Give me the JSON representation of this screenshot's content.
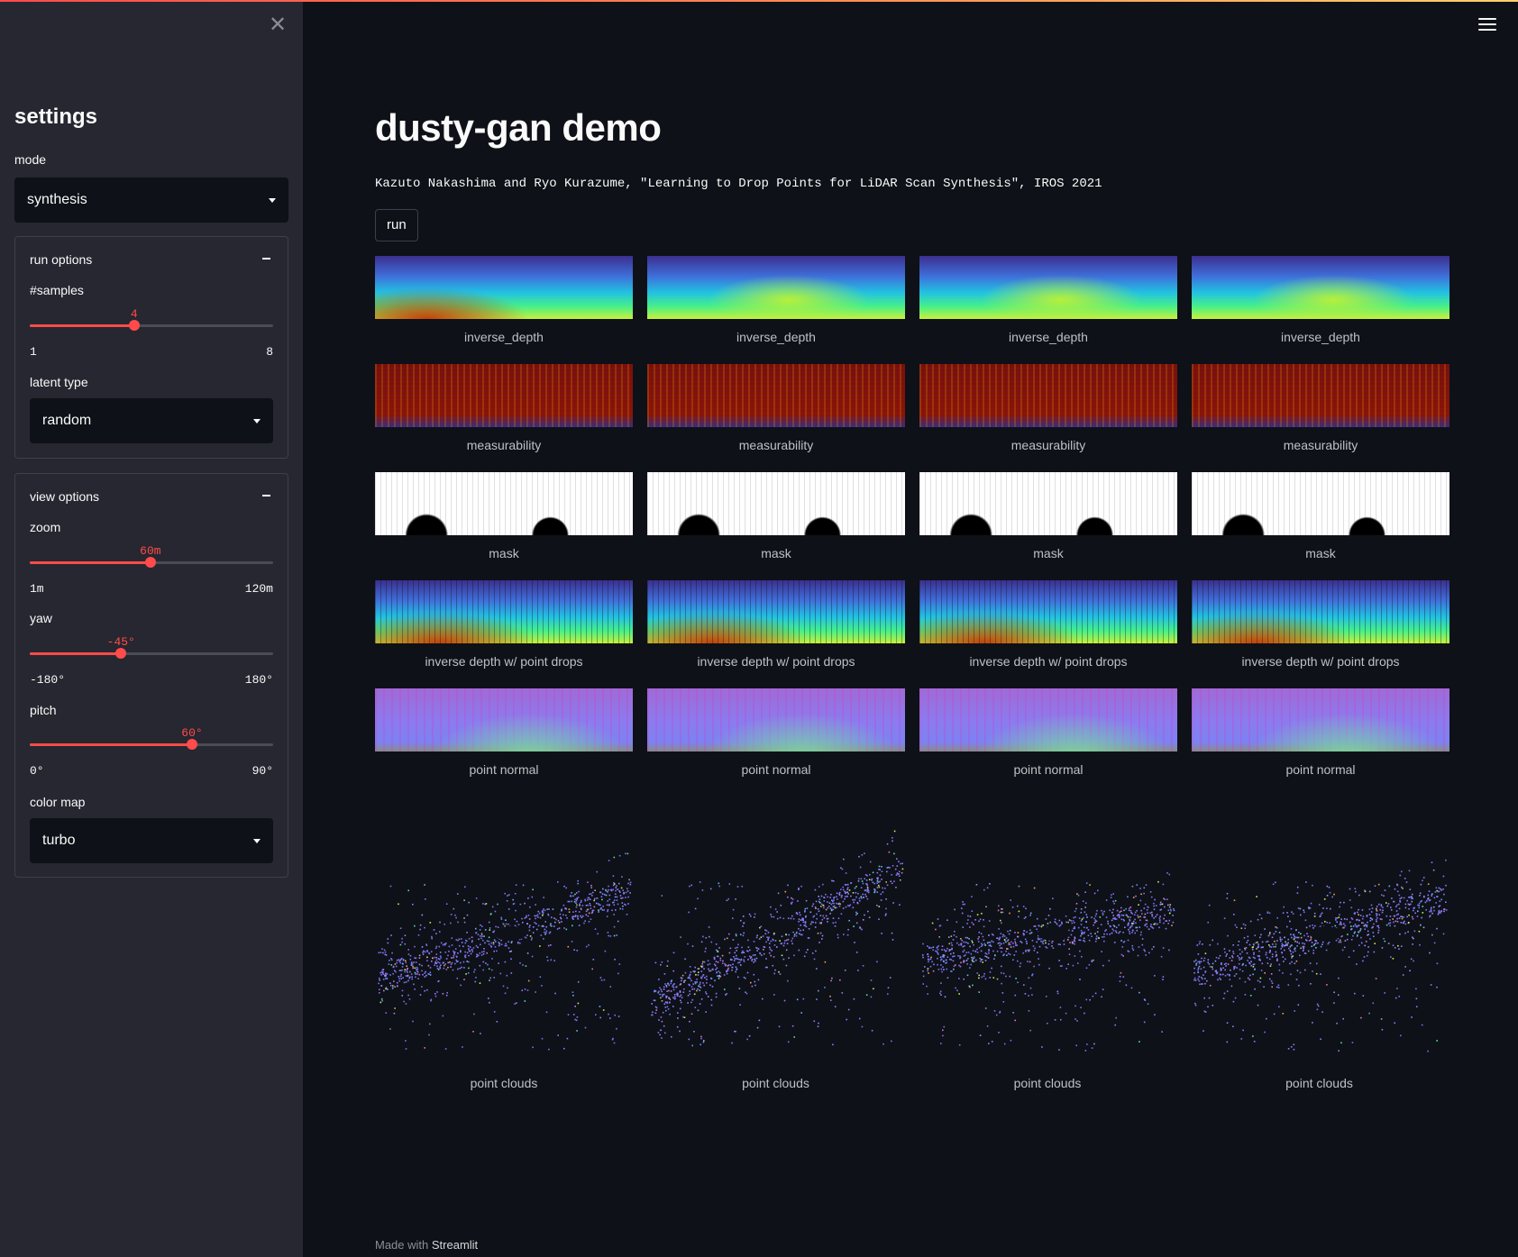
{
  "sidebar": {
    "title": "settings",
    "mode": {
      "label": "mode",
      "value": "synthesis"
    },
    "run_options": {
      "header": "run options",
      "samples": {
        "label": "#samples",
        "value": 4,
        "value_text": "4",
        "min": "1",
        "max": "8",
        "fraction": 0.4286
      },
      "latent_type": {
        "label": "latent type",
        "value": "random"
      }
    },
    "view_options": {
      "header": "view options",
      "zoom": {
        "label": "zoom",
        "value_text": "60m",
        "min": "1m",
        "max": "120m",
        "fraction": 0.4958
      },
      "yaw": {
        "label": "yaw",
        "value_text": "-45°",
        "min": "-180°",
        "max": "180°",
        "fraction": 0.375
      },
      "pitch": {
        "label": "pitch",
        "value_text": "60°",
        "min": "0°",
        "max": "90°",
        "fraction": 0.6667
      },
      "color_map": {
        "label": "color map",
        "value": "turbo"
      }
    }
  },
  "main": {
    "title": "dusty-gan demo",
    "citation": "Kazuto Nakashima and Ryo Kurazume, \"Learning to Drop Points for LiDAR Scan Synthesis\", IROS 2021",
    "run_label": "run",
    "rows": [
      {
        "caption": "inverse_depth",
        "kind": "depth"
      },
      {
        "caption": "measurability",
        "kind": "meas"
      },
      {
        "caption": "mask",
        "kind": "mask"
      },
      {
        "caption": "inverse depth w/ point drops",
        "kind": "drop"
      },
      {
        "caption": "point normal",
        "kind": "normal"
      }
    ],
    "pointcloud_caption": "point clouds",
    "columns": 4
  },
  "footer": {
    "prefix": "Made with",
    "brand": "Streamlit"
  },
  "colors": {
    "accent": "#ff4b4b",
    "background": "#0e1117",
    "sidebar": "#262730"
  },
  "icons": {
    "close": "close-icon",
    "menu": "hamburger-menu-icon",
    "dropdown": "caret-down-icon"
  }
}
